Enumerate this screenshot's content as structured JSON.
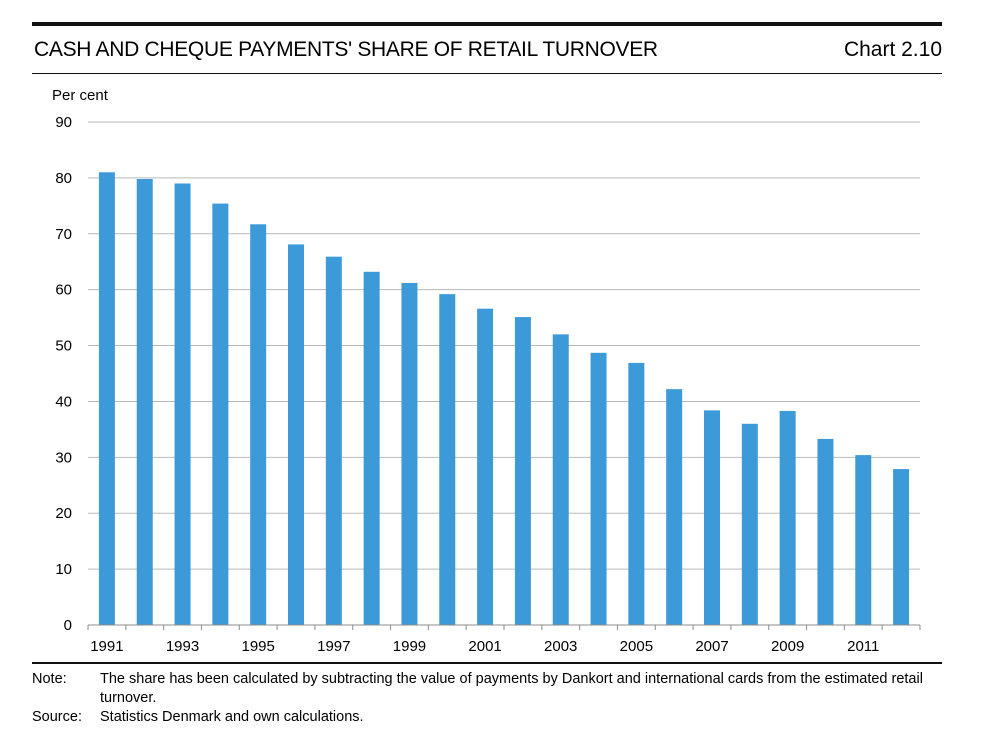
{
  "header": {
    "title": "CASH AND CHEQUE PAYMENTS' SHARE OF RETAIL TURNOVER",
    "chart_number": "Chart 2.10"
  },
  "footer": {
    "note_label": "Note:",
    "note_text": "The share has been calculated by subtracting the value of payments by Dankort and international cards from the estimated retail turnover.",
    "source_label": "Source:",
    "source_text": "Statistics Denmark and own calculations."
  },
  "colors": {
    "bar": "#3d9ad9",
    "grid": "#b9b9b9",
    "axis": "#8c8c8c"
  },
  "chart_data": {
    "type": "bar",
    "title": "CASH AND CHEQUE PAYMENTS' SHARE OF RETAIL TURNOVER",
    "ylabel": "Per cent",
    "xlabel": "",
    "ylim": [
      0,
      90
    ],
    "yticks": [
      0,
      10,
      20,
      30,
      40,
      50,
      60,
      70,
      80,
      90
    ],
    "grid": true,
    "categories": [
      "1991",
      "1992",
      "1993",
      "1994",
      "1995",
      "1996",
      "1997",
      "1998",
      "1999",
      "2000",
      "2001",
      "2002",
      "2003",
      "2004",
      "2005",
      "2006",
      "2007",
      "2008",
      "2009",
      "2010",
      "2011",
      "2012"
    ],
    "xtick_labels": [
      "1991",
      "1993",
      "1995",
      "1997",
      "1999",
      "2001",
      "2003",
      "2005",
      "2007",
      "2009",
      "2011"
    ],
    "values": [
      81.0,
      79.8,
      79.0,
      75.4,
      71.7,
      68.1,
      65.9,
      63.2,
      61.2,
      59.2,
      56.6,
      55.1,
      52.0,
      48.7,
      46.9,
      42.2,
      38.4,
      36.0,
      38.3,
      33.3,
      30.4,
      27.9
    ]
  }
}
